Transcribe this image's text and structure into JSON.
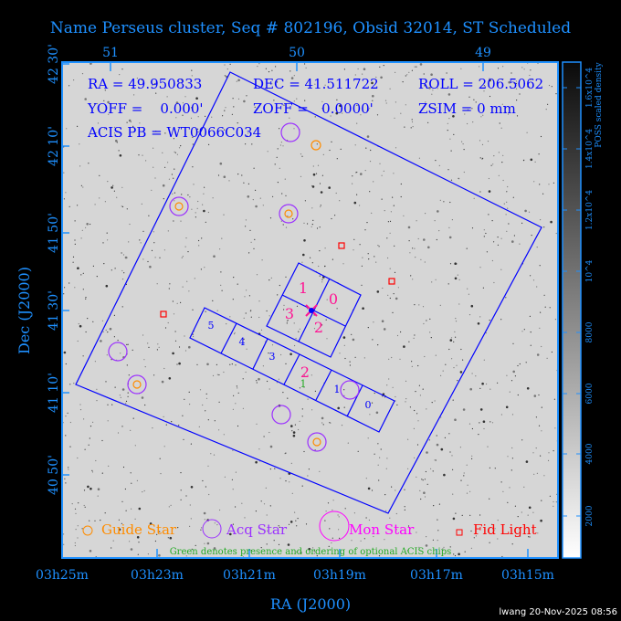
{
  "title": "Name Perseus cluster, Seq # 802196, Obsid 32014, ST Scheduled",
  "info": {
    "ra": "RA = 49.950833",
    "dec": "DEC = 41.511722",
    "roll": "ROLL = 206.5062",
    "yoff": "YOFF =    0.000'",
    "zoff": "ZOFF =   0.0000'",
    "zsim": "ZSIM = 0 mm",
    "acis_pb": "ACIS PB = WT0066C034"
  },
  "axes": {
    "xlabel": "RA (J2000)",
    "ylabel": "Dec (J2000)",
    "bottom_ticks": [
      "03h25m",
      "03h23m",
      "03h21m",
      "03h19m",
      "03h17m",
      "03h15m"
    ],
    "top_ticks": [
      "51",
      "50",
      "49"
    ],
    "left_ticks": [
      "42 30'",
      "42 10'",
      "41 50'",
      "41 30'",
      "41 10'",
      "40 50'"
    ]
  },
  "colorbar": {
    "label": "POSS scaled density",
    "ticks": [
      "2000",
      "4000",
      "6000",
      "8000",
      "10^4",
      "1.2x10^4",
      "1.4x10^4",
      "1.6x10^4"
    ]
  },
  "chips": {
    "acis_i": [
      "0",
      "1",
      "2",
      "3"
    ],
    "acis_s": [
      "0",
      "1",
      "2",
      "3",
      "4",
      "5"
    ],
    "optional": "1"
  },
  "legend": {
    "guide": "Guide Star",
    "acq": "Acq Star",
    "mon": "Mon Star",
    "fid": "Fid Light",
    "note": "Green denotes presence and ordering of optional ACIS chips"
  },
  "footer": "lwang 20-Nov-2025 08:56",
  "colors": {
    "axis": "#1e90ff",
    "overlay": "#0000ff",
    "guide": "#ff8c00",
    "acq": "#9b30ff",
    "mon": "#ff00ff",
    "fid": "#ff0000",
    "aimpoint": "#ff1493",
    "optional": "#22aa22"
  }
}
